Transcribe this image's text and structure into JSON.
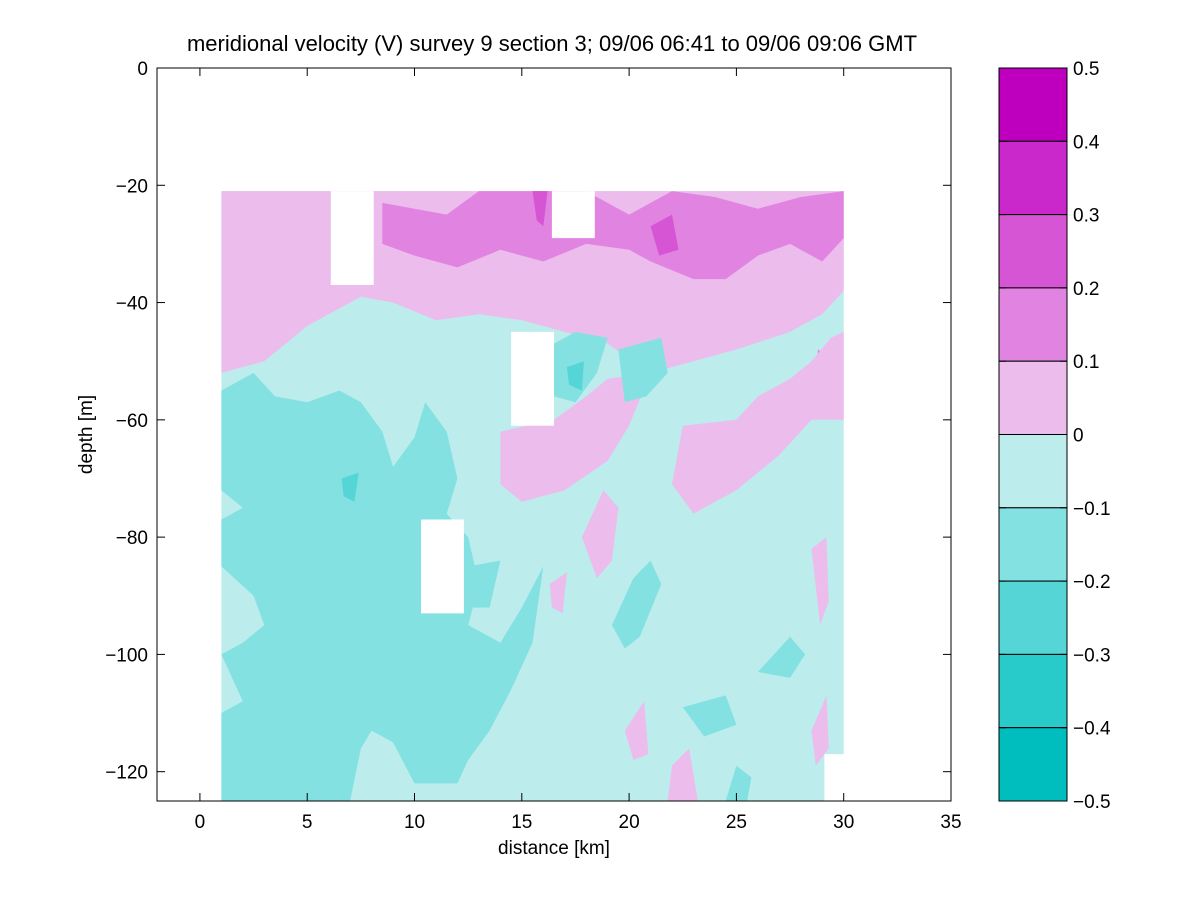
{
  "chart_data": {
    "type": "heatmap",
    "title": "meridional velocity (V) survey 9 section 3; 09/06 06:41 to 09/06 09:06 GMT",
    "xlabel": "distance [km]",
    "ylabel": "depth [m]",
    "xlim": [
      -2,
      35
    ],
    "ylim": [
      -125,
      0
    ],
    "x_ticks": [
      0,
      5,
      10,
      15,
      20,
      25,
      30,
      35
    ],
    "x_tick_labels": [
      "0",
      "5",
      "10",
      "15",
      "20",
      "25",
      "30",
      "35"
    ],
    "y_ticks": [
      0,
      -20,
      -40,
      -60,
      -80,
      -100,
      -120
    ],
    "y_tick_labels": [
      "0",
      "−20",
      "−40",
      "−60",
      "−80",
      "−100",
      "−120"
    ],
    "data_extent": {
      "x": [
        1,
        30
      ],
      "y": [
        -125,
        -21
      ]
    },
    "colorbar": {
      "range": [
        -0.5,
        0.5
      ],
      "ticks": [
        0.5,
        0.4,
        0.3,
        0.2,
        0.1,
        0,
        -0.1,
        -0.2,
        -0.3,
        -0.4,
        -0.5
      ],
      "tick_labels": [
        "0.5",
        "0.4",
        "0.3",
        "0.2",
        "0.1",
        "0",
        "−0.1",
        "−0.2",
        "−0.3",
        "−0.4",
        "−0.5"
      ],
      "levels": [
        {
          "from": 0.4,
          "to": 0.5,
          "color": "#BE00BE"
        },
        {
          "from": 0.3,
          "to": 0.4,
          "color": "#CA28CA"
        },
        {
          "from": 0.2,
          "to": 0.3,
          "color": "#D555D5"
        },
        {
          "from": 0.1,
          "to": 0.2,
          "color": "#E183E1"
        },
        {
          "from": 0.0,
          "to": 0.1,
          "color": "#ECBDEC"
        },
        {
          "from": -0.1,
          "to": 0.0,
          "color": "#BDECEC"
        },
        {
          "from": -0.2,
          "to": -0.1,
          "color": "#83E1E1"
        },
        {
          "from": -0.3,
          "to": -0.2,
          "color": "#55D5D5"
        },
        {
          "from": -0.4,
          "to": -0.3,
          "color": "#28CACA"
        },
        {
          "from": -0.5,
          "to": -0.4,
          "color": "#00BEBE"
        }
      ]
    },
    "regions": [
      {
        "level": 0.05,
        "points": [
          [
            1,
            -21
          ],
          [
            30,
            -21
          ],
          [
            30,
            -38
          ],
          [
            29,
            -42
          ],
          [
            27.5,
            -45
          ],
          [
            25,
            -48
          ],
          [
            23,
            -50
          ],
          [
            21,
            -52
          ],
          [
            19,
            -47
          ],
          [
            17,
            -45
          ],
          [
            15,
            -43
          ],
          [
            13,
            -42
          ],
          [
            11,
            -43
          ],
          [
            9,
            -40
          ],
          [
            7.5,
            -39
          ],
          [
            6,
            -42
          ],
          [
            5,
            -44
          ],
          [
            4,
            -47
          ],
          [
            3,
            -50
          ],
          [
            1,
            -52
          ]
        ]
      },
      {
        "level": 0.15,
        "points": [
          [
            8.5,
            -23
          ],
          [
            11.5,
            -25
          ],
          [
            13,
            -21
          ],
          [
            18,
            -21
          ],
          [
            20,
            -25
          ],
          [
            22,
            -21
          ],
          [
            24,
            -22
          ],
          [
            26,
            -24
          ],
          [
            28,
            -22
          ],
          [
            30,
            -21
          ],
          [
            30,
            -29
          ],
          [
            29,
            -33
          ],
          [
            27.5,
            -30
          ],
          [
            26,
            -32
          ],
          [
            24.5,
            -36
          ],
          [
            23,
            -36
          ],
          [
            21,
            -33
          ],
          [
            20,
            -31
          ],
          [
            18,
            -30
          ],
          [
            16,
            -33
          ],
          [
            14,
            -31
          ],
          [
            12,
            -34
          ],
          [
            10,
            -32
          ],
          [
            8.5,
            -30
          ]
        ]
      },
      {
        "level": 0.15,
        "points": [
          [
            28.8,
            -48
          ],
          [
            29.6,
            -50
          ],
          [
            29.4,
            -58
          ],
          [
            28.6,
            -56
          ]
        ]
      },
      {
        "level": 0.25,
        "points": [
          [
            15.5,
            -21
          ],
          [
            16.2,
            -21
          ],
          [
            16,
            -27
          ],
          [
            15.7,
            -26
          ]
        ]
      },
      {
        "level": 0.25,
        "points": [
          [
            21,
            -27
          ],
          [
            22,
            -25
          ],
          [
            22.3,
            -31
          ],
          [
            21.4,
            -32
          ]
        ]
      },
      {
        "level": 0.05,
        "points": [
          [
            14,
            -62
          ],
          [
            16.5,
            -60
          ],
          [
            18,
            -56
          ],
          [
            19,
            -53
          ],
          [
            21,
            -52
          ],
          [
            20,
            -61
          ],
          [
            19,
            -67
          ],
          [
            17,
            -72
          ],
          [
            15,
            -74
          ],
          [
            14,
            -71
          ]
        ]
      },
      {
        "level": 0.05,
        "points": [
          [
            22.5,
            -61
          ],
          [
            25,
            -60
          ],
          [
            26,
            -56
          ],
          [
            27.5,
            -53
          ],
          [
            28.5,
            -50
          ],
          [
            29.4,
            -46
          ],
          [
            30,
            -45
          ],
          [
            30,
            -60
          ],
          [
            28.5,
            -60
          ],
          [
            27,
            -66
          ],
          [
            25,
            -72
          ],
          [
            23,
            -76
          ],
          [
            22,
            -71
          ]
        ]
      },
      {
        "level": 0.05,
        "points": [
          [
            17.8,
            -80
          ],
          [
            18.8,
            -72
          ],
          [
            19.5,
            -75
          ],
          [
            19.2,
            -84
          ],
          [
            18.5,
            -87
          ]
        ]
      },
      {
        "level": 0.05,
        "points": [
          [
            16.3,
            -88
          ],
          [
            17.1,
            -86
          ],
          [
            16.9,
            -93
          ],
          [
            16.4,
            -92
          ]
        ]
      },
      {
        "level": 0.05,
        "points": [
          [
            19.8,
            -113
          ],
          [
            20.7,
            -108
          ],
          [
            20.9,
            -117
          ],
          [
            20.2,
            -118
          ]
        ]
      },
      {
        "level": 0.05,
        "points": [
          [
            22,
            -119
          ],
          [
            22.8,
            -116
          ],
          [
            23.2,
            -125
          ],
          [
            21.8,
            -125
          ]
        ]
      },
      {
        "level": 0.05,
        "points": [
          [
            28.5,
            -113
          ],
          [
            29.2,
            -107
          ],
          [
            29.3,
            -116
          ],
          [
            28.7,
            -119
          ]
        ]
      },
      {
        "level": 0.05,
        "points": [
          [
            28.5,
            -82
          ],
          [
            29.2,
            -80
          ],
          [
            29.3,
            -91
          ],
          [
            28.9,
            -95
          ]
        ]
      },
      {
        "level": 0.05,
        "points": [
          [
            2.2,
            -124
          ],
          [
            2.6,
            -122
          ],
          [
            2.7,
            -125
          ],
          [
            2.2,
            -125
          ]
        ]
      },
      {
        "level": -0.15,
        "points": [
          [
            1,
            -55
          ],
          [
            2.5,
            -52
          ],
          [
            3.5,
            -56
          ],
          [
            5,
            -57
          ],
          [
            6.5,
            -55
          ],
          [
            7.5,
            -57
          ],
          [
            8.5,
            -62
          ],
          [
            9,
            -68
          ],
          [
            10,
            -63
          ],
          [
            10.5,
            -57
          ],
          [
            11.5,
            -62
          ],
          [
            12,
            -70
          ],
          [
            11.5,
            -76
          ],
          [
            12.5,
            -80
          ],
          [
            13,
            -88
          ],
          [
            12.5,
            -95
          ],
          [
            14,
            -98
          ],
          [
            15,
            -92
          ],
          [
            16,
            -85
          ],
          [
            15.5,
            -98
          ],
          [
            14.5,
            -106
          ],
          [
            13.5,
            -113
          ],
          [
            12.5,
            -118
          ],
          [
            12,
            -122
          ],
          [
            10,
            -122
          ],
          [
            9,
            -115
          ],
          [
            8,
            -113
          ],
          [
            7.5,
            -116
          ],
          [
            7,
            -125
          ],
          [
            1,
            -125
          ],
          [
            1,
            -110
          ],
          [
            2,
            -108
          ],
          [
            1,
            -100
          ],
          [
            2,
            -98
          ],
          [
            3,
            -95
          ],
          [
            2.5,
            -90
          ],
          [
            1,
            -85
          ],
          [
            1,
            -77
          ],
          [
            2,
            -75
          ],
          [
            1,
            -72
          ]
        ]
      },
      {
        "level": -0.15,
        "points": [
          [
            15.2,
            -47
          ],
          [
            16.5,
            -47
          ],
          [
            17.5,
            -45
          ],
          [
            19,
            -46
          ],
          [
            18.5,
            -52
          ],
          [
            17.5,
            -57
          ],
          [
            16.5,
            -56
          ],
          [
            15.8,
            -54
          ]
        ]
      },
      {
        "level": -0.15,
        "points": [
          [
            19.5,
            -48
          ],
          [
            21.5,
            -46
          ],
          [
            21.8,
            -52
          ],
          [
            20.8,
            -56
          ],
          [
            19.8,
            -57
          ]
        ]
      },
      {
        "level": -0.15,
        "points": [
          [
            12.5,
            -85
          ],
          [
            14,
            -84
          ],
          [
            13.5,
            -92
          ],
          [
            12.5,
            -92
          ]
        ]
      },
      {
        "level": -0.15,
        "points": [
          [
            19.2,
            -95
          ],
          [
            20.2,
            -87
          ],
          [
            21,
            -84
          ],
          [
            21.5,
            -88
          ],
          [
            20.5,
            -97
          ],
          [
            19.8,
            -99
          ]
        ]
      },
      {
        "level": -0.15,
        "points": [
          [
            26,
            -103
          ],
          [
            27.5,
            -97
          ],
          [
            28.2,
            -100
          ],
          [
            27.5,
            -104
          ]
        ]
      },
      {
        "level": -0.15,
        "points": [
          [
            22.5,
            -109
          ],
          [
            24.5,
            -107
          ],
          [
            25,
            -112
          ],
          [
            23.5,
            -114
          ]
        ]
      },
      {
        "level": -0.15,
        "points": [
          [
            24.5,
            -125
          ],
          [
            25,
            -119
          ],
          [
            25.7,
            -121
          ],
          [
            25.5,
            -125
          ]
        ]
      },
      {
        "level": -0.25,
        "points": [
          [
            17.1,
            -51
          ],
          [
            17.9,
            -50
          ],
          [
            17.8,
            -55
          ],
          [
            17.2,
            -54
          ]
        ]
      },
      {
        "level": -0.25,
        "points": [
          [
            6.6,
            -70
          ],
          [
            7.4,
            -69
          ],
          [
            7.2,
            -74
          ],
          [
            6.7,
            -73
          ]
        ]
      },
      {
        "level": 0.0,
        "white": true,
        "points": [
          [
            6.1,
            -21
          ],
          [
            8.1,
            -21
          ],
          [
            8.1,
            -37
          ],
          [
            6.1,
            -37
          ]
        ]
      },
      {
        "level": 0.0,
        "white": true,
        "points": [
          [
            16.4,
            -21
          ],
          [
            18.4,
            -21
          ],
          [
            18.4,
            -29
          ],
          [
            16.4,
            -29
          ]
        ]
      },
      {
        "level": 0.0,
        "white": true,
        "points": [
          [
            14.5,
            -45
          ],
          [
            16.5,
            -45
          ],
          [
            16.5,
            -61
          ],
          [
            14.5,
            -61
          ]
        ]
      },
      {
        "level": 0.0,
        "white": true,
        "points": [
          [
            10.3,
            -77
          ],
          [
            12.3,
            -77
          ],
          [
            12.3,
            -93
          ],
          [
            10.3,
            -93
          ]
        ]
      },
      {
        "level": 0.0,
        "white": true,
        "points": [
          [
            29.1,
            -117
          ],
          [
            30.1,
            -117
          ],
          [
            30.1,
            -125
          ],
          [
            29.1,
            -125
          ]
        ]
      }
    ]
  }
}
